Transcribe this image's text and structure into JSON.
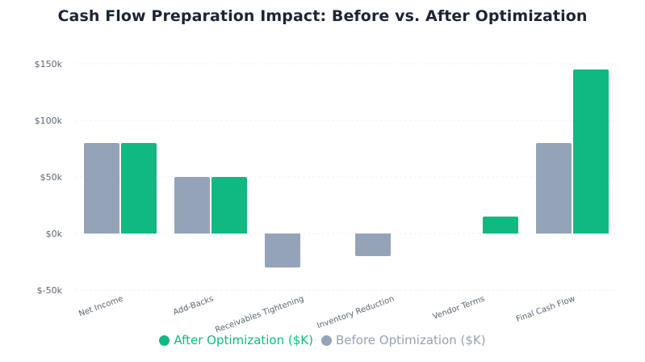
{
  "chart_data": {
    "type": "bar",
    "title": "Cash Flow Preparation Impact: Before vs. After Optimization",
    "categories": [
      "Net Income",
      "Add-Backs",
      "Receivables Tightening",
      "Inventory Reduction",
      "Vendor Terms",
      "Final Cash Flow"
    ],
    "series": [
      {
        "name": "Before Optimization ($K)",
        "values": [
          80,
          50,
          -30,
          -20,
          0,
          80
        ],
        "color": "#94a3b8"
      },
      {
        "name": "After Optimization ($K)",
        "values": [
          80,
          50,
          0,
          0,
          15,
          145
        ],
        "color": "#10b981"
      }
    ],
    "ylim": [
      -50,
      150
    ],
    "yticks": [
      -50,
      0,
      50,
      100,
      150
    ],
    "ytick_labels": [
      "$-50k",
      "$0k",
      "$50k",
      "$100k",
      "$150k"
    ],
    "grid": true,
    "legend_position": "bottom",
    "legend_order": [
      1,
      0
    ]
  }
}
